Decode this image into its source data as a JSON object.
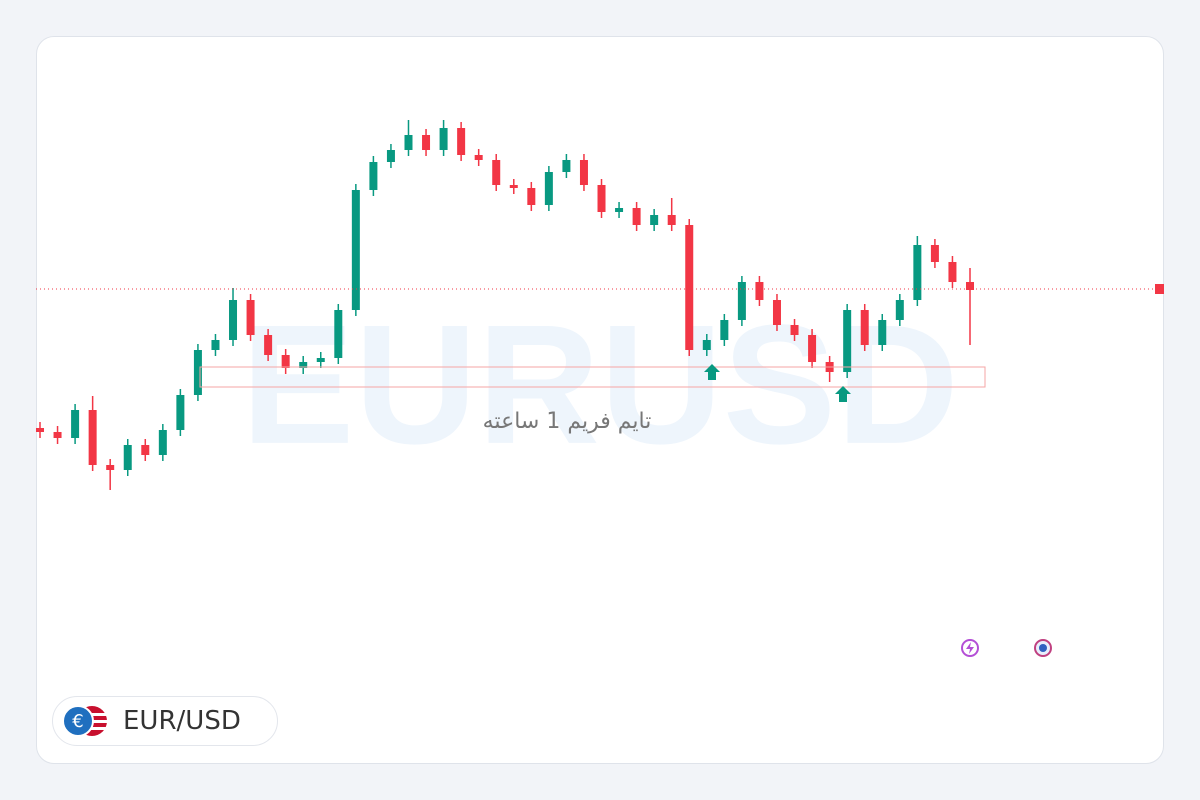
{
  "chart_data": {
    "type": "candlestick",
    "watermark": "EURUSD",
    "subtitle": "تایم فریم 1 ساعته",
    "symbol": "EUR/USD",
    "ylim": [
      0,
      100
    ],
    "up_color": "#089981",
    "down_color": "#f23645",
    "price_line": 52.75,
    "zone": [
      28.25,
      33.25
    ],
    "open": [
      18,
      17,
      15.5,
      22.5,
      8.75,
      7.5,
      13.75,
      11.25,
      17.5,
      26.25,
      37.5,
      40,
      50,
      41.25,
      36.25,
      33,
      34.5,
      35.5,
      47.5,
      77.5,
      84.5,
      87.5,
      91.25,
      87.5,
      93,
      86.25,
      85,
      78.75,
      78,
      73.75,
      82,
      85,
      78.75,
      72,
      73,
      68.75,
      71.25,
      68.75,
      37.5,
      40,
      45,
      54.5,
      50,
      43.75,
      41.25,
      34.5,
      32,
      47.5,
      38.75,
      45,
      50,
      63.75,
      59.5,
      54.5
    ],
    "high": [
      19.5,
      18.5,
      24,
      26,
      10.25,
      15.25,
      15.25,
      19,
      27.75,
      39,
      41.5,
      53,
      51.5,
      42.75,
      37.75,
      36,
      37,
      49,
      79,
      86,
      89,
      95,
      92.75,
      95,
      94.5,
      87.75,
      86.5,
      80.25,
      79.5,
      83.5,
      86.5,
      86.5,
      80.25,
      74.5,
      74.5,
      72.75,
      75.5,
      70.25,
      41.5,
      46.5,
      56,
      56,
      51.5,
      45.25,
      42.75,
      36,
      49,
      49,
      46.5,
      51.5,
      66,
      65.25,
      61,
      58
    ],
    "low": [
      15.5,
      14,
      14,
      7.25,
      2.5,
      6,
      9.75,
      9.75,
      16,
      24.75,
      36,
      38.5,
      39.75,
      34.75,
      31.5,
      31.5,
      33,
      34,
      46,
      76,
      83,
      86,
      86,
      86,
      84.75,
      83.5,
      77.25,
      76.5,
      72.25,
      72.25,
      80.5,
      77.25,
      70.5,
      70.5,
      67.25,
      67.25,
      67.25,
      36,
      36,
      38.5,
      43.5,
      48.5,
      42.25,
      39.75,
      33,
      29.5,
      30.5,
      37.25,
      37.25,
      43.5,
      48.5,
      58,
      53,
      38.75
    ],
    "close": [
      17,
      15.5,
      22.5,
      8.75,
      7.5,
      13.75,
      11.25,
      17.5,
      26.25,
      37.5,
      40,
      50,
      41.25,
      36.25,
      33,
      34.5,
      35.5,
      47.5,
      77.5,
      84.5,
      87.5,
      91.25,
      87.5,
      93,
      86.25,
      85,
      78.75,
      78,
      73.75,
      82,
      85,
      78.75,
      72,
      73,
      68.75,
      71.25,
      68.75,
      37.5,
      40,
      45,
      54.5,
      50,
      43.75,
      41.25,
      34.5,
      32,
      47.5,
      38.75,
      45,
      50,
      63.75,
      59.5,
      54.5,
      52.5
    ]
  }
}
